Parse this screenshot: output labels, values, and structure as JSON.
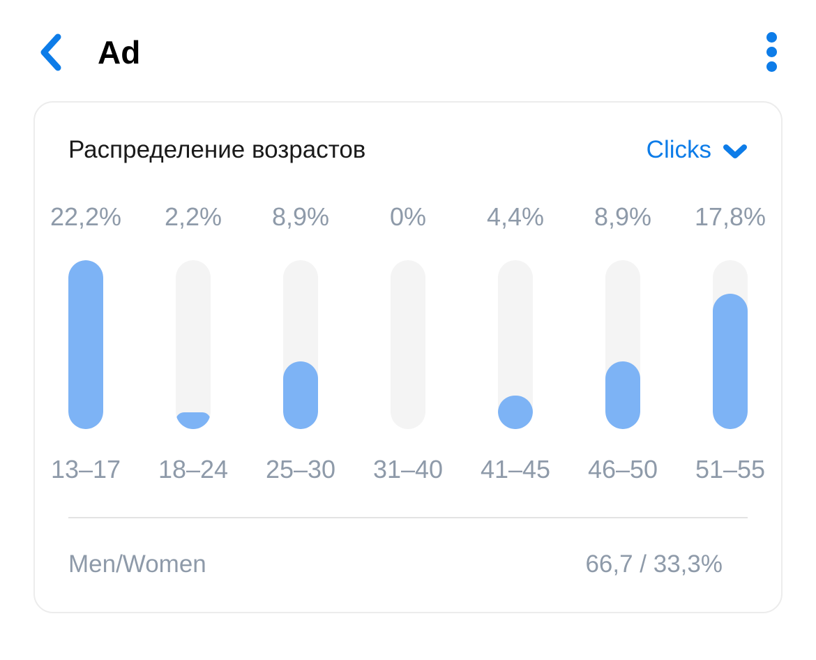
{
  "colors": {
    "accent": "#0d7ce8",
    "bar_fill": "#7db3f5",
    "bar_track": "#f4f4f4",
    "muted_text": "#8e9aa9",
    "dark_text": "#1a1a1a",
    "card_border": "#ececec",
    "divider": "#e3e3e3"
  },
  "header": {
    "title": "Ad"
  },
  "card": {
    "title": "Распределение возрастов",
    "metric_dropdown": {
      "selected": "Clicks"
    },
    "gender_row": {
      "label": "Men/Women",
      "value": "66,7 / 33,3%"
    }
  },
  "chart_data": {
    "type": "bar",
    "title": "Распределение возрастов",
    "metric": "Clicks",
    "orientation": "vertical",
    "categories": [
      "13–17",
      "18–24",
      "25–30",
      "31–40",
      "41–45",
      "46–50",
      "51–55"
    ],
    "values": [
      22.2,
      2.2,
      8.9,
      0,
      4.4,
      8.9,
      17.8
    ],
    "value_labels": [
      "22,2%",
      "2,2%",
      "8,9%",
      "0%",
      "4,4%",
      "8,9%",
      "17,8%"
    ],
    "ylim": [
      0,
      22.2
    ],
    "grid": false,
    "legend": false,
    "note": "bar fill height is normalized to the maximum value (22.2%)"
  }
}
